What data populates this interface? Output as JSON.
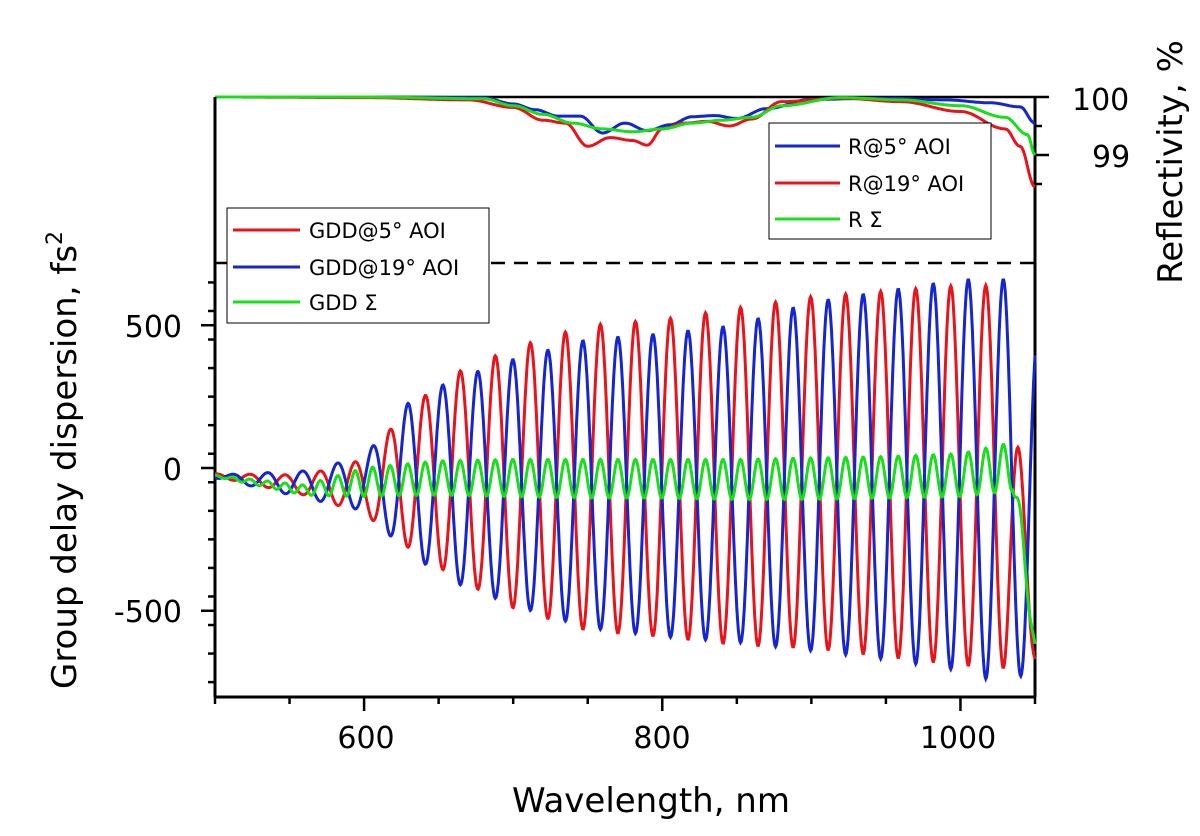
{
  "chart_data": {
    "type": "line",
    "xlabel": "Wavelength, nm",
    "xlim": [
      500,
      1050
    ],
    "x_ticks": [
      "600",
      "800",
      "1000"
    ],
    "gdd_panel": {
      "ylabel": "Group delay dispersion, fs",
      "ylabel_sup": "2",
      "ylim": [
        -800,
        1000
      ],
      "y_ticks": [
        "500",
        "0",
        "-500"
      ],
      "legend_position": "upper-left",
      "series": [
        {
          "name": "GDD@5° AOI",
          "color": "#e8141b",
          "envelope": {
            "x": [
              500,
              560,
              600,
              630,
              660,
              700,
              750,
              800,
              850,
              900,
              950,
              1000,
              1030,
              1050
            ],
            "max": [
              -20,
              -25,
              30,
              210,
              330,
              420,
              500,
              520,
              560,
              600,
              620,
              640,
              640,
              -560
            ],
            "min": [
              -30,
              -95,
              -160,
              -280,
              -380,
              -490,
              -570,
              -590,
              -620,
              -630,
              -660,
              -690,
              -700,
              -680
            ]
          },
          "period_nm": 23.5
        },
        {
          "name": "GDD@19° AOI",
          "color": "#1525d0",
          "envelope": {
            "x": [
              500,
              560,
              600,
              630,
              660,
              700,
              750,
              800,
              850,
              900,
              950,
              1000,
              1030,
              1050
            ],
            "max": [
              -25,
              -10,
              40,
              230,
              310,
              380,
              450,
              470,
              500,
              580,
              620,
              660,
              660,
              500
            ],
            "min": [
              -35,
              -105,
              -150,
              -300,
              -400,
              -480,
              -560,
              -590,
              -610,
              -640,
              -670,
              -710,
              -760,
              -700
            ]
          },
          "period_nm": 23.5
        },
        {
          "name": "GDD Σ",
          "color": "#18e018",
          "envelope": {
            "x": [
              500,
              560,
              600,
              650,
              700,
              750,
              800,
              850,
              900,
              950,
              1000,
              1035,
              1050
            ],
            "max": [
              -25,
              -60,
              0,
              25,
              30,
              30,
              30,
              30,
              35,
              40,
              50,
              90,
              -600
            ],
            "min": [
              -30,
              -95,
              -100,
              -95,
              -100,
              -105,
              -105,
              -110,
              -110,
              -105,
              -100,
              -80,
              -650
            ]
          }
        }
      ]
    },
    "reflectivity_panel": {
      "ylabel": "Reflectivity, %",
      "ylim": [
        98.45,
        100.05
      ],
      "y_ticks": [
        "100",
        "99"
      ],
      "legend_position": "right",
      "series": [
        {
          "name": "R@5° AOI",
          "color": "#1525d0",
          "x": [
            500,
            600,
            680,
            700,
            715,
            730,
            745,
            760,
            775,
            790,
            805,
            820,
            835,
            850,
            870,
            900,
            950,
            990,
            1020,
            1040,
            1050
          ],
          "y": [
            100,
            100,
            99.99,
            99.88,
            99.78,
            99.67,
            99.67,
            99.38,
            99.55,
            99.42,
            99.52,
            99.66,
            99.68,
            99.63,
            99.8,
            99.96,
            99.98,
            99.95,
            99.9,
            99.83,
            99.55
          ]
        },
        {
          "name": "R@19° AOI",
          "color": "#e8141b",
          "x": [
            500,
            600,
            670,
            700,
            720,
            735,
            750,
            765,
            780,
            790,
            800,
            815,
            830,
            845,
            860,
            880,
            920,
            960,
            1000,
            1030,
            1040,
            1050
          ],
          "y": [
            100,
            99.99,
            99.95,
            99.82,
            99.6,
            99.55,
            99.15,
            99.3,
            99.25,
            99.17,
            99.45,
            99.55,
            99.58,
            99.5,
            99.62,
            99.92,
            99.98,
            99.92,
            99.75,
            99.45,
            99.15,
            98.45
          ]
        },
        {
          "name": "R Σ",
          "color": "#18e018",
          "x": [
            500,
            600,
            680,
            700,
            720,
            740,
            760,
            780,
            800,
            820,
            840,
            860,
            880,
            920,
            960,
            1000,
            1030,
            1045,
            1050
          ],
          "y": [
            100,
            100,
            99.97,
            99.85,
            99.7,
            99.55,
            99.45,
            99.4,
            99.45,
            99.55,
            99.6,
            99.65,
            99.85,
            99.99,
            99.95,
            99.85,
            99.65,
            99.35,
            99.0
          ]
        }
      ]
    }
  }
}
